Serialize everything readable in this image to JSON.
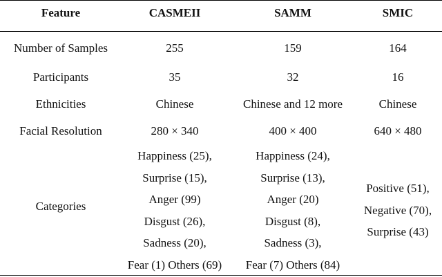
{
  "table": {
    "headers": [
      "Feature",
      "CASMEII",
      "SAMM",
      "SMIC"
    ],
    "rows": [
      {
        "feature": "Number of Samples",
        "casme": "255",
        "samm": "159",
        "smic": "164"
      },
      {
        "feature": "Participants",
        "casme": "35",
        "samm": "32",
        "smic": "16"
      },
      {
        "feature": "Ethnicities",
        "casme": "Chinese",
        "samm": "Chinese and 12 more",
        "smic": "Chinese"
      },
      {
        "feature": "Facial Resolution",
        "casme": "280 × 340",
        "samm": "400 × 400",
        "smic": "640 × 480"
      }
    ],
    "categories": {
      "feature": "Categories",
      "casme": [
        "Happiness (25),",
        "Surprise (15),",
        "Anger (99)",
        "Disgust (26),",
        "Sadness (20),",
        "Fear (1) Others (69)"
      ],
      "samm": [
        "Happiness (24),",
        "Surprise (13),",
        "Anger (20)",
        "Disgust (8),",
        "Sadness (3),",
        "Fear (7) Others (84)"
      ],
      "smic": [
        "Positive (51),",
        "Negative (70),",
        "Surprise (43)"
      ]
    }
  }
}
